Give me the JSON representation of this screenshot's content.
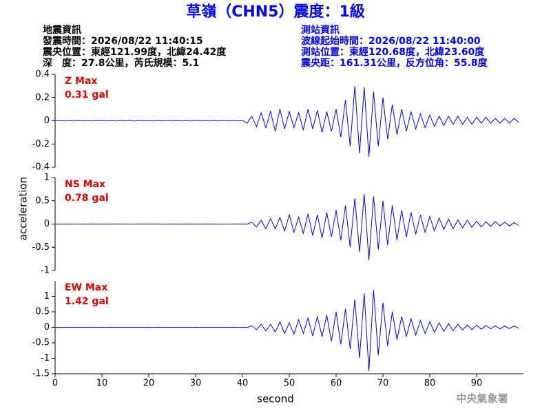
{
  "header": {
    "title": "草嶺（CHN5）震度：1級",
    "left": [
      "地震資訊",
      "發震時間：2026/08/22 11:40:15",
      "震央位置：東經121.99度，北緯24.42度",
      "深　度：27.8公里，芮氏規模：5.1"
    ],
    "right": [
      "測站資訊",
      "波線起始時間：2026/08/22 11:40:00",
      "測站位置：東經120.68度，北緯23.60度",
      "震央距：161.31公里，反方位角：55.8度"
    ]
  },
  "ylabel": "acceleration",
  "footer": "中央氣象署",
  "chart_data": [
    {
      "type": "line",
      "color": "#0000ff",
      "annotation": [
        "Z Max",
        "0.31 gal"
      ],
      "xlim": [
        0,
        100
      ],
      "ylim": [
        -0.4,
        0.4
      ],
      "yticks": [
        -0.4,
        -0.2,
        0,
        0.2,
        0.4
      ],
      "x": [
        0,
        1,
        2,
        3,
        4,
        5,
        6,
        7,
        8,
        9,
        10,
        11,
        12,
        13,
        14,
        15,
        16,
        17,
        18,
        19,
        20,
        21,
        22,
        23,
        24,
        25,
        26,
        27,
        28,
        29,
        30,
        31,
        32,
        33,
        34,
        35,
        36,
        37,
        38,
        39,
        40,
        41,
        42,
        43,
        44,
        45,
        46,
        47,
        48,
        49,
        50,
        51,
        52,
        53,
        54,
        55,
        56,
        57,
        58,
        59,
        60,
        61,
        62,
        63,
        64,
        65,
        66,
        67,
        68,
        69,
        70,
        71,
        72,
        73,
        74,
        75,
        76,
        77,
        78,
        79,
        80,
        81,
        82,
        83,
        84,
        85,
        86,
        87,
        88,
        89,
        90,
        91,
        92,
        93,
        94,
        95,
        96,
        97,
        98,
        99
      ],
      "values": [
        0,
        0.002,
        -0.002,
        0.001,
        -0.001,
        0.002,
        -0.002,
        0.001,
        -0.002,
        0.002,
        0.001,
        -0.001,
        0.002,
        -0.002,
        0.001,
        -0.001,
        0.002,
        -0.001,
        0.001,
        -0.002,
        0.002,
        -0.001,
        0.001,
        -0.002,
        0.002,
        -0.001,
        0.001,
        -0.002,
        0.002,
        -0.001,
        0.001,
        -0.002,
        0.002,
        -0.001,
        0.001,
        -0.002,
        0.002,
        -0.001,
        0.001,
        -0.002,
        0.003,
        -0.02,
        0.04,
        -0.05,
        0.07,
        -0.06,
        0.08,
        -0.09,
        0.1,
        -0.07,
        0.08,
        -0.06,
        0.07,
        -0.08,
        0.1,
        -0.07,
        0.09,
        -0.1,
        0.08,
        -0.09,
        0.1,
        -0.14,
        0.18,
        -0.22,
        0.3,
        -0.28,
        0.29,
        -0.31,
        0.25,
        -0.22,
        0.2,
        -0.16,
        0.14,
        -0.12,
        0.1,
        -0.09,
        0.08,
        -0.07,
        0.06,
        -0.06,
        0.05,
        -0.05,
        0.04,
        -0.04,
        0.04,
        -0.03,
        0.04,
        -0.03,
        0.03,
        -0.03,
        0.03,
        -0.02,
        0.03,
        -0.02,
        0.02,
        -0.02,
        0.02,
        -0.02,
        0.02,
        -0.01
      ]
    },
    {
      "type": "line",
      "color": "#0000ff",
      "annotation": [
        "NS Max",
        "0.78 gal"
      ],
      "xlim": [
        0,
        100
      ],
      "ylim": [
        -1,
        1
      ],
      "yticks": [
        -1,
        -0.5,
        0,
        0.5,
        1
      ],
      "x": [
        0,
        1,
        2,
        3,
        4,
        5,
        6,
        7,
        8,
        9,
        10,
        11,
        12,
        13,
        14,
        15,
        16,
        17,
        18,
        19,
        20,
        21,
        22,
        23,
        24,
        25,
        26,
        27,
        28,
        29,
        30,
        31,
        32,
        33,
        34,
        35,
        36,
        37,
        38,
        39,
        40,
        41,
        42,
        43,
        44,
        45,
        46,
        47,
        48,
        49,
        50,
        51,
        52,
        53,
        54,
        55,
        56,
        57,
        58,
        59,
        60,
        61,
        62,
        63,
        64,
        65,
        66,
        67,
        68,
        69,
        70,
        71,
        72,
        73,
        74,
        75,
        76,
        77,
        78,
        79,
        80,
        81,
        82,
        83,
        84,
        85,
        86,
        87,
        88,
        89,
        90,
        91,
        92,
        93,
        94,
        95,
        96,
        97,
        98,
        99
      ],
      "values": [
        0.002,
        -0.002,
        0.002,
        -0.002,
        0.002,
        -0.002,
        0.002,
        -0.002,
        0.002,
        -0.002,
        0.002,
        -0.002,
        0.002,
        -0.002,
        0.002,
        -0.002,
        0.002,
        -0.002,
        0.002,
        -0.002,
        0.002,
        -0.002,
        0.002,
        -0.002,
        0.002,
        -0.002,
        0.002,
        -0.002,
        0.002,
        -0.002,
        0.002,
        -0.002,
        0.002,
        -0.002,
        0.002,
        -0.002,
        0.002,
        -0.002,
        0.002,
        -0.002,
        0.002,
        -0.002,
        0.04,
        -0.06,
        0.08,
        -0.1,
        0.12,
        -0.1,
        0.14,
        -0.15,
        0.2,
        -0.18,
        0.15,
        -0.2,
        0.22,
        -0.25,
        0.2,
        -0.3,
        0.25,
        -0.28,
        0.3,
        -0.35,
        0.4,
        -0.5,
        0.55,
        -0.6,
        0.65,
        -0.78,
        0.6,
        -0.55,
        0.5,
        -0.45,
        0.4,
        -0.35,
        0.3,
        -0.28,
        0.25,
        -0.22,
        0.2,
        -0.18,
        0.16,
        -0.15,
        0.13,
        -0.12,
        0.11,
        -0.1,
        0.09,
        -0.08,
        0.08,
        -0.07,
        0.06,
        -0.06,
        0.05,
        -0.05,
        0.05,
        -0.04,
        0.04,
        -0.04,
        0.03,
        -0.03
      ]
    },
    {
      "type": "line",
      "color": "#0000ff",
      "annotation": [
        "EW Max",
        "1.42 gal"
      ],
      "xlim": [
        0,
        100
      ],
      "ylim": [
        -1.5,
        1.5
      ],
      "yticks": [
        -1.5,
        -1,
        -0.5,
        0,
        0.5,
        1
      ],
      "xticks": [
        0,
        10,
        20,
        30,
        40,
        50,
        60,
        70,
        80,
        90
      ],
      "xlabel": "second",
      "x": [
        0,
        1,
        2,
        3,
        4,
        5,
        6,
        7,
        8,
        9,
        10,
        11,
        12,
        13,
        14,
        15,
        16,
        17,
        18,
        19,
        20,
        21,
        22,
        23,
        24,
        25,
        26,
        27,
        28,
        29,
        30,
        31,
        32,
        33,
        34,
        35,
        36,
        37,
        38,
        39,
        40,
        41,
        42,
        43,
        44,
        45,
        46,
        47,
        48,
        49,
        50,
        51,
        52,
        53,
        54,
        55,
        56,
        57,
        58,
        59,
        60,
        61,
        62,
        63,
        64,
        65,
        66,
        67,
        68,
        69,
        70,
        71,
        72,
        73,
        74,
        75,
        76,
        77,
        78,
        79,
        80,
        81,
        82,
        83,
        84,
        85,
        86,
        87,
        88,
        89,
        90,
        91,
        92,
        93,
        94,
        95,
        96,
        97,
        98,
        99
      ],
      "values": [
        0.003,
        -0.003,
        0.003,
        -0.003,
        0.003,
        -0.003,
        0.003,
        -0.003,
        0.003,
        -0.003,
        0.003,
        -0.003,
        0.003,
        -0.003,
        0.003,
        -0.003,
        0.003,
        -0.003,
        0.003,
        -0.003,
        0.003,
        -0.003,
        0.003,
        -0.003,
        0.003,
        -0.003,
        0.003,
        -0.003,
        0.003,
        -0.003,
        0.003,
        -0.003,
        0.003,
        -0.003,
        0.003,
        -0.003,
        0.003,
        -0.003,
        0.003,
        -0.003,
        0.003,
        -0.003,
        0.05,
        -0.08,
        0.1,
        -0.12,
        0.1,
        -0.15,
        0.18,
        -0.2,
        0.15,
        -0.22,
        0.25,
        -0.2,
        0.3,
        -0.28,
        0.35,
        -0.3,
        0.4,
        -0.45,
        0.5,
        -0.55,
        0.6,
        -0.7,
        0.9,
        -1,
        1.1,
        -1.42,
        1.2,
        -0.9,
        0.8,
        -0.6,
        0.5,
        -0.4,
        0.35,
        -0.3,
        0.28,
        -0.25,
        0.22,
        -0.2,
        0.18,
        -0.16,
        0.15,
        -0.13,
        0.12,
        -0.11,
        0.1,
        -0.09,
        0.08,
        -0.08,
        0.07,
        -0.06,
        0.06,
        -0.05,
        0.05,
        -0.05,
        0.04,
        -0.04,
        0.04,
        -0.03
      ]
    }
  ]
}
